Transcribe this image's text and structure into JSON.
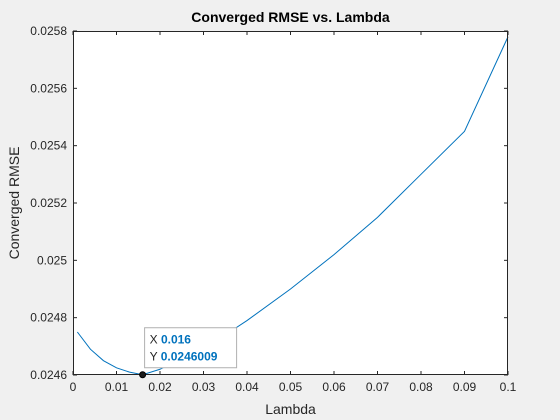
{
  "colors": {
    "figure_bg": "#f0f0f0",
    "axes_bg": "#ffffff",
    "line": "#0072bd",
    "axis": "#262626",
    "datatip_value": "#0072bd"
  },
  "chart_data": {
    "type": "line",
    "title": "Converged RMSE vs. Lambda",
    "xlabel": "Lambda",
    "ylabel": "Converged RMSE",
    "xlim": [
      0,
      0.1
    ],
    "ylim": [
      0.0246,
      0.0258
    ],
    "xticks": [
      0,
      0.01,
      0.02,
      0.03,
      0.04,
      0.05,
      0.06,
      0.07,
      0.08,
      0.09,
      0.1
    ],
    "xtick_labels": [
      "0",
      "0.01",
      "0.02",
      "0.03",
      "0.04",
      "0.05",
      "0.06",
      "0.07",
      "0.08",
      "0.09",
      "0.1"
    ],
    "yticks": [
      0.0246,
      0.0248,
      0.025,
      0.0252,
      0.0254,
      0.0256,
      0.0258
    ],
    "ytick_labels": [
      "0.0246",
      "0.0248",
      "0.025",
      "0.0252",
      "0.0254",
      "0.0256",
      "0.0258"
    ],
    "grid": false,
    "series": [
      {
        "x": [
          0.001,
          0.004,
          0.007,
          0.01,
          0.013,
          0.016,
          0.02,
          0.025,
          0.03,
          0.035,
          0.04,
          0.05,
          0.06,
          0.07,
          0.08,
          0.09,
          0.1
        ],
        "values": [
          0.02475,
          0.02469,
          0.02465,
          0.024625,
          0.02461,
          0.0246009,
          0.02462,
          0.02466,
          0.0247,
          0.02474,
          0.02479,
          0.0249,
          0.02502,
          0.02515,
          0.0253,
          0.02545,
          0.02578
        ]
      }
    ],
    "datatip": {
      "x_label": "X",
      "x_value": "0.016",
      "y_label": "Y",
      "y_value": "0.0246009",
      "x": 0.016,
      "y": 0.0246009
    }
  }
}
